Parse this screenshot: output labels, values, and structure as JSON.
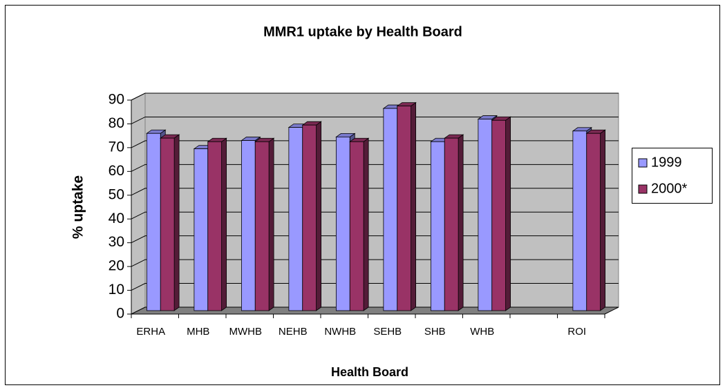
{
  "chart_data": {
    "type": "bar3d",
    "title": "MMR1 uptake by Health Board",
    "x_label": "Health Board",
    "y_label": "% uptake",
    "categories": [
      "ERHA",
      "MHB",
      "MWHB",
      "NEHB",
      "NWHB",
      "SEHB",
      "SHB",
      "WHB",
      null,
      "ROI"
    ],
    "series": [
      {
        "name": "1999",
        "color": "#9999ff",
        "values": [
          76,
          69.5,
          73,
          78.5,
          74.5,
          86.5,
          72.5,
          82,
          null,
          77
        ]
      },
      {
        "name": "2000*",
        "color": "#993366",
        "values": [
          74,
          72.5,
          72.5,
          79.5,
          72.5,
          87.5,
          74,
          81.5,
          null,
          76
        ]
      }
    ],
    "ylim": [
      0,
      90
    ],
    "yticks": [
      0,
      10,
      20,
      30,
      40,
      50,
      60,
      70,
      80,
      90
    ],
    "grid": true,
    "legend": "right"
  }
}
